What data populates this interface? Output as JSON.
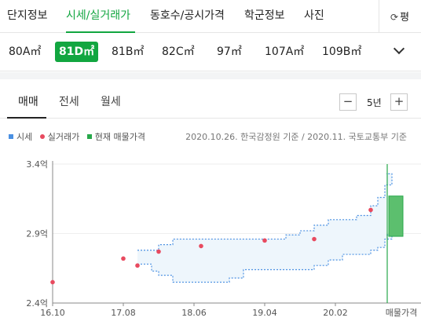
{
  "topnav": {
    "tabs": [
      {
        "label": "단지정보",
        "active": false
      },
      {
        "label": "시세/실거래가",
        "active": true
      },
      {
        "label": "동호수/공시가격",
        "active": false
      },
      {
        "label": "학군정보",
        "active": false
      },
      {
        "label": "사진",
        "active": false
      }
    ],
    "pyeong_label": "평",
    "refresh_icon": "refresh-icon"
  },
  "areas": [
    "80A㎡",
    "81D㎡",
    "81B㎡",
    "82C㎡",
    "97㎡",
    "107A㎡",
    "109B㎡"
  ],
  "selected_area": "81D㎡",
  "subtabs": [
    "매매",
    "전세",
    "월세"
  ],
  "period": {
    "label": "5년",
    "minus": "−",
    "plus": "+"
  },
  "legend": {
    "items": [
      {
        "label": "시세",
        "color": "#4a90e2"
      },
      {
        "label": "실거래가",
        "color": "#e84a5f"
      },
      {
        "label": "현재 매물가격",
        "color": "#27a84a"
      }
    ],
    "source": "2020.10.26. 한국감정원 기준 / 2020.11. 국토교통부 기준"
  },
  "chart_data": {
    "type": "scatter",
    "ylim": [
      2.4,
      3.4
    ],
    "y_ticks": [
      "3.4억",
      "2.9억",
      "2.4억"
    ],
    "x_ticks": [
      "16.10",
      "17.08",
      "18.06",
      "19.04",
      "20.02"
    ],
    "current_listing_label": "매물가격",
    "transactions": [
      {
        "date": "2016.10",
        "price": 2.55
      },
      {
        "date": "2017.08",
        "price": 2.72
      },
      {
        "date": "2017.10",
        "price": 2.67
      },
      {
        "date": "2018.01",
        "price": 2.77
      },
      {
        "date": "2018.07",
        "price": 2.81
      },
      {
        "date": "2019.04",
        "price": 2.85
      },
      {
        "date": "2019.11",
        "price": 2.86
      },
      {
        "date": "2020.07",
        "price": 3.07
      }
    ],
    "price_band": [
      {
        "date": "2017.10",
        "low": 2.68,
        "high": 2.78
      },
      {
        "date": "2017.12",
        "low": 2.63,
        "high": 2.78
      },
      {
        "date": "2018.01",
        "low": 2.6,
        "high": 2.82
      },
      {
        "date": "2018.03",
        "low": 2.55,
        "high": 2.86
      },
      {
        "date": "2018.06",
        "low": 2.55,
        "high": 2.86
      },
      {
        "date": "2018.09",
        "low": 2.55,
        "high": 2.86
      },
      {
        "date": "2018.11",
        "low": 2.58,
        "high": 2.86
      },
      {
        "date": "2019.01",
        "low": 2.64,
        "high": 2.86
      },
      {
        "date": "2019.04",
        "low": 2.64,
        "high": 2.86
      },
      {
        "date": "2019.07",
        "low": 2.64,
        "high": 2.89
      },
      {
        "date": "2019.09",
        "low": 2.64,
        "high": 2.92
      },
      {
        "date": "2019.11",
        "low": 2.67,
        "high": 2.96
      },
      {
        "date": "2020.01",
        "low": 2.71,
        "high": 3.0
      },
      {
        "date": "2020.03",
        "low": 2.75,
        "high": 3.0
      },
      {
        "date": "2020.05",
        "low": 2.75,
        "high": 3.03
      },
      {
        "date": "2020.07",
        "low": 2.78,
        "high": 3.1
      },
      {
        "date": "2020.08",
        "low": 2.8,
        "high": 3.16
      },
      {
        "date": "2020.09",
        "low": 2.86,
        "high": 3.25
      },
      {
        "date": "2020.10",
        "low": 2.89,
        "high": 3.33
      }
    ],
    "current_listing": {
      "low": 2.88,
      "high": 3.17,
      "color": "#27a84a"
    }
  }
}
